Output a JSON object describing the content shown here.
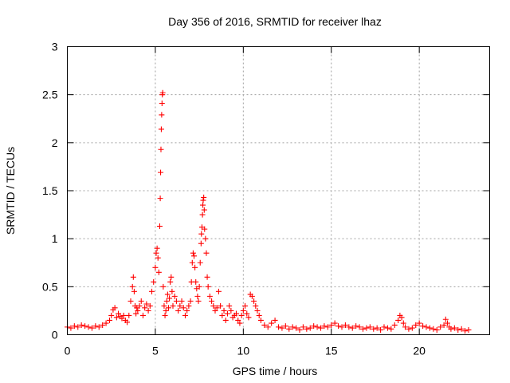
{
  "chart_data": {
    "type": "scatter",
    "title": "Day 356 of 2016, SRMTID for receiver lhaz",
    "xlabel": "GPS time / hours",
    "ylabel": "SRMTID / TECUs",
    "xlim": [
      0,
      24
    ],
    "ylim": [
      0,
      3
    ],
    "x_ticks": [
      0,
      5,
      10,
      15,
      20
    ],
    "x_tick_labels": [
      "0",
      "5",
      "10",
      "15",
      "20"
    ],
    "y_ticks": [
      0,
      0.5,
      1,
      1.5,
      2,
      2.5,
      3
    ],
    "y_tick_labels": [
      "0",
      "0.5",
      "1",
      "1.5",
      "2",
      "2.5",
      "3"
    ],
    "grid": true,
    "marker": "plus",
    "color": "#ff0000",
    "series": [
      {
        "name": "SRMTID",
        "x": [
          0.0,
          0.2,
          0.4,
          0.6,
          0.8,
          1.0,
          1.2,
          1.4,
          1.6,
          1.8,
          2.0,
          2.2,
          2.4,
          2.5,
          2.6,
          2.7,
          2.8,
          2.9,
          3.0,
          3.1,
          3.2,
          3.3,
          3.4,
          3.5,
          3.6,
          3.7,
          3.75,
          3.8,
          3.85,
          3.9,
          3.95,
          4.0,
          4.1,
          4.2,
          4.3,
          4.4,
          4.5,
          4.6,
          4.7,
          4.8,
          4.9,
          5.0,
          5.05,
          5.1,
          5.15,
          5.2,
          5.25,
          5.28,
          5.3,
          5.32,
          5.34,
          5.36,
          5.38,
          5.4,
          5.42,
          5.45,
          5.5,
          5.55,
          5.6,
          5.65,
          5.7,
          5.75,
          5.8,
          5.85,
          5.9,
          5.95,
          6.0,
          6.1,
          6.2,
          6.3,
          6.4,
          6.5,
          6.6,
          6.7,
          6.8,
          6.9,
          7.0,
          7.05,
          7.1,
          7.15,
          7.2,
          7.25,
          7.3,
          7.35,
          7.4,
          7.45,
          7.5,
          7.55,
          7.6,
          7.62,
          7.65,
          7.68,
          7.7,
          7.72,
          7.75,
          7.78,
          7.8,
          7.85,
          7.9,
          7.95,
          8.0,
          8.1,
          8.2,
          8.3,
          8.4,
          8.5,
          8.6,
          8.7,
          8.8,
          8.9,
          9.0,
          9.1,
          9.2,
          9.3,
          9.4,
          9.5,
          9.6,
          9.7,
          9.8,
          9.9,
          10.0,
          10.1,
          10.2,
          10.3,
          10.4,
          10.5,
          10.6,
          10.7,
          10.8,
          10.9,
          11.0,
          11.2,
          11.4,
          11.6,
          11.8,
          12.0,
          12.2,
          12.4,
          12.6,
          12.8,
          13.0,
          13.2,
          13.4,
          13.6,
          13.8,
          14.0,
          14.2,
          14.4,
          14.6,
          14.8,
          15.0,
          15.2,
          15.4,
          15.6,
          15.8,
          16.0,
          16.2,
          16.4,
          16.6,
          16.8,
          17.0,
          17.2,
          17.4,
          17.6,
          17.8,
          18.0,
          18.2,
          18.4,
          18.6,
          18.8,
          18.9,
          19.0,
          19.1,
          19.2,
          19.4,
          19.6,
          19.8,
          20.0,
          20.2,
          20.4,
          20.6,
          20.8,
          21.0,
          21.2,
          21.4,
          21.5,
          21.6,
          21.7,
          21.8,
          22.0,
          22.2,
          22.4,
          22.6,
          22.8
        ],
        "y": [
          0.08,
          0.07,
          0.09,
          0.08,
          0.1,
          0.09,
          0.08,
          0.07,
          0.09,
          0.08,
          0.1,
          0.12,
          0.15,
          0.2,
          0.26,
          0.28,
          0.18,
          0.22,
          0.19,
          0.17,
          0.2,
          0.15,
          0.13,
          0.2,
          0.35,
          0.5,
          0.6,
          0.45,
          0.3,
          0.22,
          0.28,
          0.25,
          0.3,
          0.35,
          0.2,
          0.28,
          0.32,
          0.25,
          0.3,
          0.45,
          0.55,
          0.7,
          0.85,
          0.9,
          0.8,
          0.65,
          1.13,
          1.42,
          1.69,
          1.93,
          2.14,
          2.29,
          2.41,
          2.5,
          2.52,
          0.5,
          0.3,
          0.2,
          0.25,
          0.35,
          0.42,
          0.28,
          0.38,
          0.55,
          0.6,
          0.45,
          0.3,
          0.4,
          0.35,
          0.25,
          0.3,
          0.35,
          0.28,
          0.2,
          0.25,
          0.3,
          0.35,
          0.55,
          0.75,
          0.85,
          0.82,
          0.7,
          0.55,
          0.48,
          0.4,
          0.35,
          0.5,
          0.75,
          0.95,
          1.05,
          1.12,
          1.25,
          1.35,
          1.4,
          1.43,
          1.3,
          1.1,
          1.0,
          0.85,
          0.6,
          0.5,
          0.4,
          0.35,
          0.3,
          0.25,
          0.28,
          0.45,
          0.3,
          0.2,
          0.25,
          0.15,
          0.22,
          0.3,
          0.25,
          0.18,
          0.2,
          0.22,
          0.15,
          0.12,
          0.2,
          0.25,
          0.3,
          0.22,
          0.18,
          0.42,
          0.4,
          0.35,
          0.3,
          0.25,
          0.2,
          0.15,
          0.1,
          0.08,
          0.12,
          0.15,
          0.08,
          0.07,
          0.09,
          0.06,
          0.08,
          0.07,
          0.05,
          0.08,
          0.06,
          0.07,
          0.09,
          0.08,
          0.07,
          0.09,
          0.08,
          0.1,
          0.12,
          0.09,
          0.08,
          0.1,
          0.08,
          0.07,
          0.09,
          0.08,
          0.06,
          0.07,
          0.08,
          0.06,
          0.07,
          0.05,
          0.08,
          0.07,
          0.06,
          0.1,
          0.15,
          0.2,
          0.18,
          0.12,
          0.08,
          0.06,
          0.07,
          0.1,
          0.12,
          0.09,
          0.08,
          0.07,
          0.06,
          0.05,
          0.08,
          0.1,
          0.16,
          0.12,
          0.08,
          0.06,
          0.07,
          0.05,
          0.06,
          0.04,
          0.05
        ]
      }
    ]
  }
}
